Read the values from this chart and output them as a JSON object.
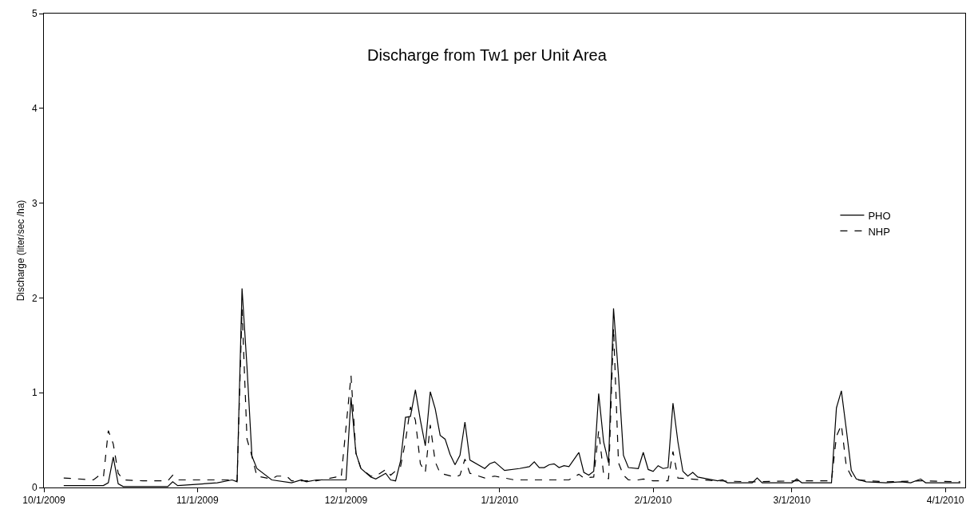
{
  "chart_data": {
    "type": "line",
    "title": "Discharge from Tw1 per Unit Area",
    "ylabel": "Discharge (liter/sec /ha)",
    "xlim": [
      "2009-10-01",
      "2010-04-05"
    ],
    "xticks": [
      {
        "value": "2009-10-01",
        "label": "10/1/2009"
      },
      {
        "value": "2009-11-01",
        "label": "11/1/2009"
      },
      {
        "value": "2009-12-01",
        "label": "12/1/2009"
      },
      {
        "value": "2010-01-01",
        "label": "1/1/2010"
      },
      {
        "value": "2010-02-01",
        "label": "2/1/2010"
      },
      {
        "value": "2010-03-01",
        "label": "3/1/2010"
      },
      {
        "value": "2010-04-01",
        "label": "4/1/2010"
      }
    ],
    "ylim": [
      0,
      5
    ],
    "yticks": [
      0,
      1,
      2,
      3,
      4,
      5
    ],
    "legend": "right",
    "marker": "none",
    "series": [
      {
        "name": "PHO",
        "color": "#000000",
        "line_style": "solid",
        "x": [
          "2009-10-05",
          "2009-10-13",
          "2009-10-14",
          "2009-10-15",
          "2009-10-16",
          "2009-10-17",
          "2009-10-26",
          "2009-10-27",
          "2009-10-28",
          "2009-10-31",
          "2009-11-05",
          "2009-11-08",
          "2009-11-09",
          "2009-11-10",
          "2009-11-11",
          "2009-11-12",
          "2009-11-13",
          "2009-11-16",
          "2009-11-20",
          "2009-11-22",
          "2009-11-23",
          "2009-11-25",
          "2009-11-30",
          "2009-12-01",
          "2009-12-02",
          "2009-12-03",
          "2009-12-04",
          "2009-12-06",
          "2009-12-07",
          "2009-12-09",
          "2009-12-10",
          "2009-12-11",
          "2009-12-12",
          "2009-12-13",
          "2009-12-14",
          "2009-12-15",
          "2009-12-16",
          "2009-12-17",
          "2009-12-18",
          "2009-12-19",
          "2009-12-20",
          "2009-12-21",
          "2009-12-22",
          "2009-12-23",
          "2009-12-24",
          "2009-12-25",
          "2009-12-26",
          "2009-12-29",
          "2009-12-30",
          "2009-12-31",
          "2010-01-02",
          "2010-01-05",
          "2010-01-07",
          "2010-01-08",
          "2010-01-09",
          "2010-01-10",
          "2010-01-11",
          "2010-01-12",
          "2010-01-13",
          "2010-01-14",
          "2010-01-15",
          "2010-01-17",
          "2010-01-18",
          "2010-01-19",
          "2010-01-20",
          "2010-01-21",
          "2010-01-22",
          "2010-01-23",
          "2010-01-24",
          "2010-01-25",
          "2010-01-26",
          "2010-01-27",
          "2010-01-29",
          "2010-01-30",
          "2010-01-31",
          "2010-02-01",
          "2010-02-02",
          "2010-02-03",
          "2010-02-04",
          "2010-02-05",
          "2010-02-06",
          "2010-02-07",
          "2010-02-08",
          "2010-02-09",
          "2010-02-10",
          "2010-02-11",
          "2010-02-14",
          "2010-02-15",
          "2010-02-16",
          "2010-02-21",
          "2010-02-22",
          "2010-02-23",
          "2010-03-01",
          "2010-03-02",
          "2010-03-03",
          "2010-03-09",
          "2010-03-10",
          "2010-03-11",
          "2010-03-12",
          "2010-03-13",
          "2010-03-14",
          "2010-03-16",
          "2010-03-20",
          "2010-03-23",
          "2010-03-25",
          "2010-03-27",
          "2010-03-28",
          "2010-04-04"
        ],
        "values": [
          0.02,
          0.02,
          0.05,
          0.32,
          0.04,
          0.01,
          0.01,
          0.06,
          0.02,
          0.03,
          0.05,
          0.08,
          0.06,
          2.1,
          1.27,
          0.33,
          0.2,
          0.08,
          0.05,
          0.08,
          0.06,
          0.08,
          0.08,
          0.08,
          0.95,
          0.36,
          0.2,
          0.11,
          0.09,
          0.15,
          0.08,
          0.07,
          0.28,
          0.74,
          0.75,
          1.03,
          0.71,
          0.44,
          1.01,
          0.83,
          0.55,
          0.51,
          0.35,
          0.24,
          0.34,
          0.69,
          0.29,
          0.2,
          0.25,
          0.27,
          0.18,
          0.2,
          0.22,
          0.27,
          0.21,
          0.21,
          0.24,
          0.25,
          0.21,
          0.23,
          0.22,
          0.37,
          0.16,
          0.13,
          0.17,
          0.99,
          0.48,
          0.26,
          1.89,
          1.18,
          0.34,
          0.21,
          0.2,
          0.37,
          0.19,
          0.17,
          0.23,
          0.2,
          0.21,
          0.89,
          0.48,
          0.17,
          0.12,
          0.16,
          0.11,
          0.1,
          0.07,
          0.08,
          0.05,
          0.05,
          0.1,
          0.05,
          0.05,
          0.09,
          0.05,
          0.05,
          0.84,
          1.02,
          0.61,
          0.18,
          0.09,
          0.06,
          0.05,
          0.06,
          0.05,
          0.09,
          0.05,
          0.05
        ]
      },
      {
        "name": "NHP",
        "color": "#000000",
        "line_style": "dashed",
        "x": [
          "2009-10-05",
          "2009-10-11",
          "2009-10-12",
          "2009-10-13",
          "2009-10-14",
          "2009-10-15",
          "2009-10-16",
          "2009-10-17",
          "2009-10-21",
          "2009-10-26",
          "2009-10-27",
          "2009-10-28",
          "2009-11-02",
          "2009-11-07",
          "2009-11-09",
          "2009-11-10",
          "2009-11-11",
          "2009-11-12",
          "2009-11-13",
          "2009-11-16",
          "2009-11-17",
          "2009-11-19",
          "2009-11-20",
          "2009-11-25",
          "2009-11-29",
          "2009-11-30",
          "2009-12-02",
          "2009-12-03",
          "2009-12-04",
          "2009-12-06",
          "2009-12-07",
          "2009-12-09",
          "2009-12-10",
          "2009-12-12",
          "2009-12-13",
          "2009-12-14",
          "2009-12-15",
          "2009-12-16",
          "2009-12-17",
          "2009-12-18",
          "2009-12-19",
          "2009-12-20",
          "2009-12-23",
          "2009-12-24",
          "2009-12-25",
          "2009-12-26",
          "2009-12-29",
          "2009-12-31",
          "2010-01-04",
          "2010-01-06",
          "2010-01-11",
          "2010-01-15",
          "2010-01-17",
          "2010-01-18",
          "2010-01-20",
          "2010-01-21",
          "2010-01-22",
          "2010-01-23",
          "2010-01-24",
          "2010-01-25",
          "2010-01-26",
          "2010-01-27",
          "2010-01-29",
          "2010-01-30",
          "2010-02-01",
          "2010-02-04",
          "2010-02-05",
          "2010-02-06",
          "2010-02-11",
          "2010-02-14",
          "2010-02-21",
          "2010-03-02",
          "2010-03-09",
          "2010-03-10",
          "2010-03-11",
          "2010-03-12",
          "2010-03-13",
          "2010-03-14",
          "2010-03-20",
          "2010-03-27",
          "2010-04-04"
        ],
        "values": [
          0.1,
          0.08,
          0.12,
          0.1,
          0.6,
          0.46,
          0.15,
          0.08,
          0.07,
          0.07,
          0.13,
          0.08,
          0.08,
          0.08,
          0.07,
          1.88,
          0.51,
          0.33,
          0.12,
          0.09,
          0.12,
          0.12,
          0.07,
          0.07,
          0.11,
          0.1,
          1.18,
          0.36,
          0.2,
          0.12,
          0.12,
          0.19,
          0.13,
          0.22,
          0.49,
          0.85,
          0.71,
          0.25,
          0.16,
          0.66,
          0.27,
          0.15,
          0.11,
          0.13,
          0.3,
          0.15,
          0.1,
          0.12,
          0.08,
          0.08,
          0.08,
          0.08,
          0.14,
          0.1,
          0.11,
          0.6,
          0.14,
          0.09,
          1.68,
          0.26,
          0.13,
          0.08,
          0.08,
          0.09,
          0.07,
          0.07,
          0.38,
          0.1,
          0.08,
          0.07,
          0.06,
          0.07,
          0.07,
          0.54,
          0.66,
          0.22,
          0.12,
          0.08,
          0.06,
          0.07,
          0.06
        ]
      }
    ]
  }
}
